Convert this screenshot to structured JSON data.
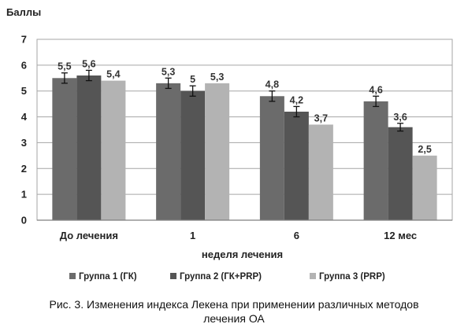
{
  "chart_data": {
    "type": "bar",
    "ylabel": "Баллы",
    "xlabel": "неделя лечения",
    "ylim": [
      0,
      7
    ],
    "yticks": [
      0,
      1,
      2,
      3,
      4,
      5,
      6,
      7
    ],
    "grid": "horizontal",
    "legend_position": "bottom",
    "categories": [
      "До лечения",
      "1",
      "6",
      "12 мес"
    ],
    "series": [
      {
        "name": "Группа 1 (ГК)",
        "color": "#6b6b6b",
        "values": [
          5.5,
          5.3,
          4.8,
          4.6
        ],
        "labels": [
          "5,5",
          "5,3",
          "4,8",
          "4,6"
        ],
        "error": [
          0.2,
          0.2,
          0.2,
          0.2
        ]
      },
      {
        "name": "Группа 2 (ГК+PRP)",
        "color": "#555555",
        "values": [
          5.6,
          5.0,
          4.2,
          3.6
        ],
        "labels": [
          "5,6",
          "5",
          "4,2",
          "3,6"
        ],
        "error": [
          0.2,
          0.2,
          0.2,
          0.15
        ]
      },
      {
        "name": "Группа 3 (PRP)",
        "color": "#b3b3b3",
        "values": [
          5.4,
          5.3,
          3.7,
          2.5
        ],
        "labels": [
          "5,4",
          "5,3",
          "3,7",
          "2,5"
        ],
        "error": [
          0,
          0,
          0,
          0
        ]
      }
    ]
  },
  "caption": {
    "line1": "Рис. 3. Изменения индекса Лекена при применении различных методов",
    "line2": "лечения ОА"
  }
}
